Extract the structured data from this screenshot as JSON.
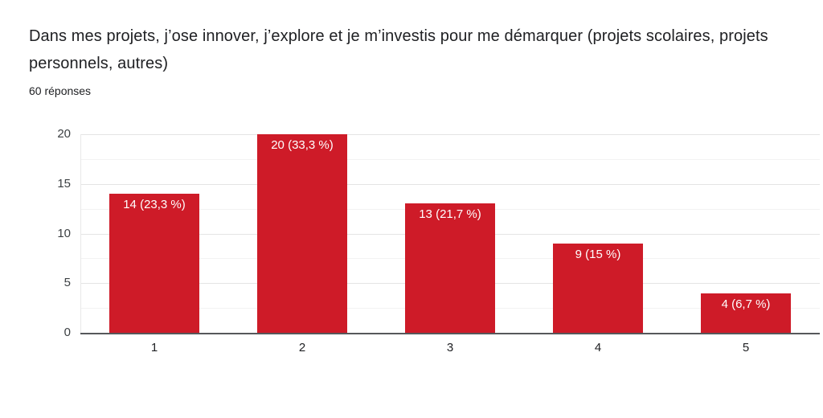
{
  "header": {
    "title": "Dans mes projets, j’ose innover, j’explore et je m’investis pour me démarquer (projets scolaires, projets personnels, autres)",
    "responses": "60 réponses"
  },
  "chart_data": {
    "type": "bar",
    "title": "Dans mes projets, j’ose innover, j’explore et je m’investis pour me démarquer (projets scolaires, projets personnels, autres)",
    "subtitle": "60 réponses",
    "categories": [
      "1",
      "2",
      "3",
      "4",
      "5"
    ],
    "values": [
      14,
      20,
      13,
      9,
      4
    ],
    "bar_labels": [
      "14 (23,3 %)",
      "20 (33,3 %)",
      "13 (21,7 %)",
      "9 (15 %)",
      "4 (6,7 %)"
    ],
    "percentages": [
      23.3,
      33.3,
      21.7,
      15,
      6.7
    ],
    "total_responses": 60,
    "xlabel": "",
    "ylabel": "",
    "ylim": [
      0,
      20
    ],
    "yticks": [
      0,
      5,
      10,
      15,
      20
    ],
    "minor_grid_step": 2.5,
    "grid": true,
    "legend": false,
    "bar_color": "#ce1b28",
    "bar_label_color": "#ffffff",
    "axis_line_color": "#56585b"
  }
}
